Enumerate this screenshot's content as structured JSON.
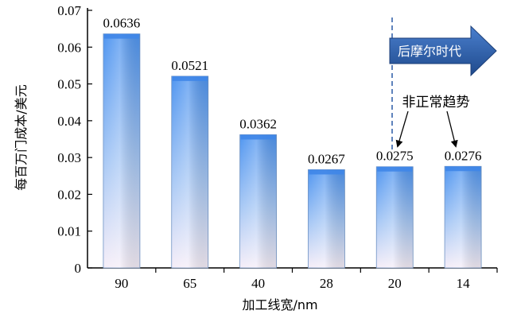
{
  "chart_data": {
    "type": "bar",
    "categories": [
      "90",
      "65",
      "40",
      "28",
      "20",
      "14"
    ],
    "values": [
      0.0636,
      0.0521,
      0.0362,
      0.0267,
      0.0275,
      0.0276
    ],
    "value_labels": [
      "0.0636",
      "0.0521",
      "0.0362",
      "0.0267",
      "0.0275",
      "0.0276"
    ],
    "xlabel": "加工线宽/nm",
    "ylabel": "每百万门成本/美元",
    "ylim": [
      0,
      0.07
    ],
    "yticks": [
      "0",
      "0.01",
      "0.02",
      "0.03",
      "0.04",
      "0.05",
      "0.06",
      "0.07"
    ],
    "grid": false,
    "annotations": {
      "era_banner": "后摩尔时代",
      "trend_note": "非正常趋势",
      "trend_targets": [
        "20",
        "14"
      ],
      "divider_before": "20"
    },
    "colors": {
      "bar_top": "#4f95f0",
      "bar_bottom": "#f6eef8",
      "banner": "#2a5aa6",
      "divider": "#2a5aa6"
    }
  }
}
